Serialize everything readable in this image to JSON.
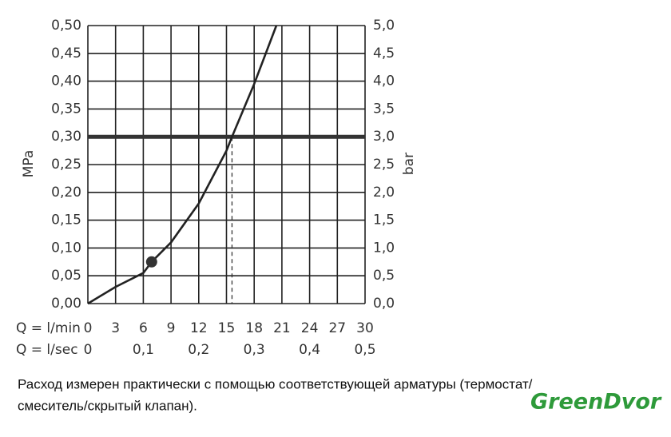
{
  "chart_data": {
    "type": "line",
    "x_label": "Q = l/min",
    "x2_label": "Q = l/sec",
    "y_label": "MPa",
    "y2_label": "bar",
    "x": [
      0,
      3,
      6,
      6.9,
      9,
      12,
      15,
      15.6,
      18,
      20.4
    ],
    "series": [
      {
        "color": "#222222",
        "values": [
          0,
          0.03,
          0.055,
          0.075,
          0.11,
          0.18,
          0.275,
          0.3,
          0.395,
          0.5
        ]
      }
    ],
    "marker": {
      "x": 6.9,
      "y": 0.075
    },
    "threshold": 0.3,
    "drop_x": 15.6,
    "xlim": [
      0,
      30
    ],
    "xticks": [
      0,
      3,
      6,
      9,
      12,
      15,
      18,
      21,
      24,
      27,
      30
    ],
    "x2lim": [
      0,
      0.5
    ],
    "x2ticks": [
      0,
      {
        "value": 0.1,
        "label": "0,1"
      },
      {
        "value": 0.2,
        "label": "0,2"
      },
      {
        "value": 0.3,
        "label": "0,3"
      },
      {
        "value": 0.4,
        "label": "0,4"
      },
      {
        "value": 0.5,
        "label": "0,5"
      }
    ],
    "ylim": [
      0,
      0.5
    ],
    "yticks": [
      {
        "value": 0,
        "label": "0,00"
      },
      {
        "value": 0.05,
        "label": "0,05"
      },
      {
        "value": 0.1,
        "label": "0,10"
      },
      {
        "value": 0.15,
        "label": "0,15"
      },
      {
        "value": 0.2,
        "label": "0,20"
      },
      {
        "value": 0.25,
        "label": "0,25"
      },
      {
        "value": 0.3,
        "label": "0,30"
      },
      {
        "value": 0.35,
        "label": "0,35"
      },
      {
        "value": 0.4,
        "label": "0,40"
      },
      {
        "value": 0.45,
        "label": "0,45"
      },
      {
        "value": 0.5,
        "label": "0,50"
      }
    ],
    "y2lim": [
      0,
      5
    ],
    "y2ticks": [
      {
        "value": 0,
        "label": "0,0"
      },
      {
        "value": 0.5,
        "label": "0,5"
      },
      {
        "value": 1,
        "label": "1,0"
      },
      {
        "value": 1.5,
        "label": "1,5"
      },
      {
        "value": 2,
        "label": "2,0"
      },
      {
        "value": 2.5,
        "label": "2,5"
      },
      {
        "value": 3,
        "label": "3,0"
      },
      {
        "value": 3.5,
        "label": "3,5"
      },
      {
        "value": 4,
        "label": "4,0"
      },
      {
        "value": 4.5,
        "label": "4,5"
      },
      {
        "value": 5,
        "label": "5,0"
      }
    ],
    "grid": true,
    "caption": [
      "Расход измерен практически с помощью соответствующей арматуры (термостат/",
      "смеситель/скрытый клапан)."
    ],
    "watermark": "GreenDvor"
  }
}
